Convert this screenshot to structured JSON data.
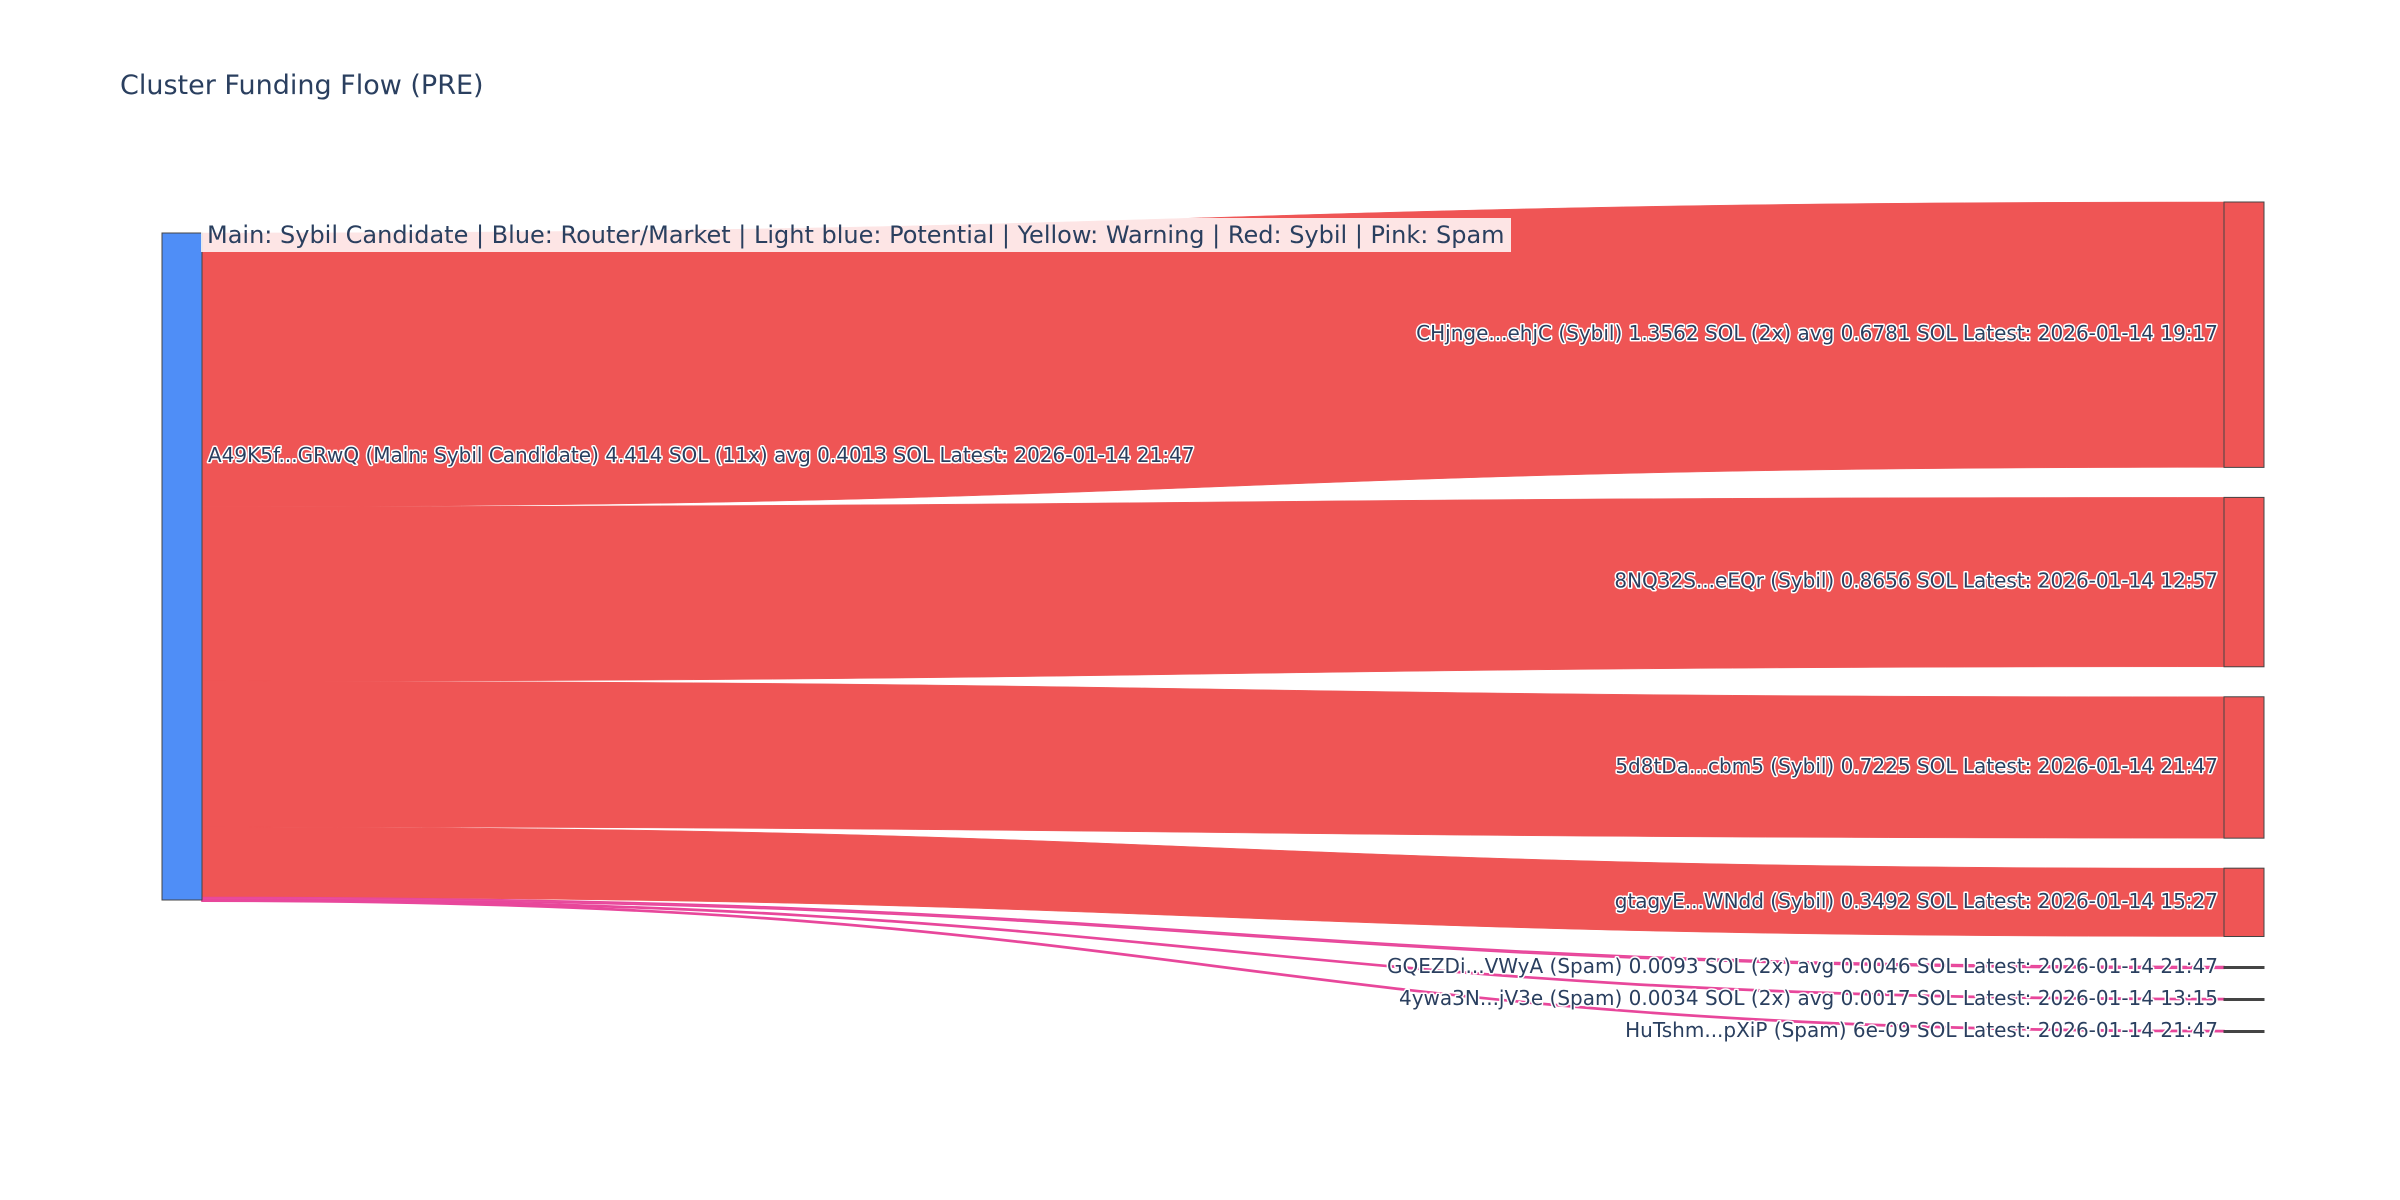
{
  "title": "Cluster Funding Flow (PRE)",
  "legend_text": "Main: Sybil Candidate  |  Blue: Router/Market | Light blue: Potential | Yellow: Warning | Red: Sybil | Pink: Spam",
  "colors": {
    "main_node": "#4f8ef7",
    "sybil": "#ef5555",
    "spam": "#e8479b",
    "node_border": "#444444",
    "text": "#2a3f5f"
  },
  "chart_data": {
    "type": "sankey",
    "source": {
      "label": "A49K5f...GRwQ (Main: Sybil Candidate) 4.414 SOL (11x) avg 0.4013 SOL Latest: 2026-01-14 21:47",
      "category": "main"
    },
    "targets": [
      {
        "label": "CHjnge...ehjC (Sybil) 1.3562 SOL (2x) avg 0.6781 SOL Latest: 2026-01-14 19:17",
        "value": 1.3562,
        "category": "sybil"
      },
      {
        "label": "8NQ32S...eEQr (Sybil) 0.8656 SOL Latest: 2026-01-14 12:57",
        "value": 0.8656,
        "category": "sybil"
      },
      {
        "label": "5d8tDa...cbm5 (Sybil) 0.7225 SOL Latest: 2026-01-14 21:47",
        "value": 0.7225,
        "category": "sybil"
      },
      {
        "label": "gtagyE...WNdd (Sybil) 0.3492 SOL Latest: 2026-01-14 15:27",
        "value": 0.3492,
        "category": "sybil"
      },
      {
        "label": "GQEZDi...VWyA (Spam) 0.0093 SOL (2x) avg 0.0046 SOL Latest: 2026-01-14 21:47",
        "value": 0.0093,
        "category": "spam"
      },
      {
        "label": "4ywa3N...jV3e (Spam) 0.0034 SOL (2x) avg 0.0017 SOL Latest: 2026-01-14 13:15",
        "value": 0.0034,
        "category": "spam"
      },
      {
        "label": "HuTshm...pXiP (Spam) 6e-09 SOL Latest: 2026-01-14 21:47",
        "value": 6e-09,
        "category": "spam"
      }
    ]
  }
}
